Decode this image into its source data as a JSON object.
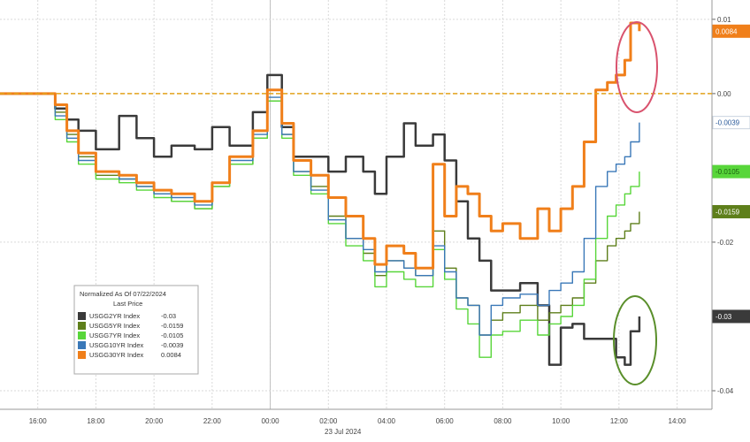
{
  "chart_data": {
    "type": "line",
    "title": "",
    "xlabel": "23 Jul 2024",
    "ylabel": "",
    "x_tick_labels": [
      "16:00",
      "18:00",
      "20:00",
      "22:00",
      "00:00",
      "02:00",
      "04:00",
      "06:00",
      "08:00",
      "10:00",
      "12:00",
      "14:00"
    ],
    "x_tick_hours": [
      -8,
      -6,
      -4,
      -2,
      0,
      2,
      4,
      6,
      8,
      10,
      12,
      14
    ],
    "x_range_hours": [
      -9.3,
      15.2
    ],
    "y_ticks": [
      0.01,
      0.0,
      -0.02,
      -0.04
    ],
    "y_tick_labels": [
      "0.01",
      "0.00",
      "-0.02",
      "-0.04"
    ],
    "ylim": [
      -0.0425,
      0.0126
    ],
    "grid": true,
    "reference_line": {
      "value": 0.0,
      "color": "#E3A21A",
      "style": "dashed"
    },
    "legend": {
      "title": "Normalized As Of 07/22/2024",
      "subtitle": "Last Price",
      "placement": "bottom-left"
    },
    "series": [
      {
        "name": "USGG2YR Index",
        "last": "-0.03",
        "last_label": "-0.03",
        "color": "#3a3a3a",
        "x": [
          -9.3,
          -7.4,
          -7.0,
          -6.6,
          -6.0,
          -5.2,
          -4.6,
          -4.0,
          -3.4,
          -2.6,
          -2.0,
          -1.4,
          -0.6,
          -0.1,
          0.4,
          0.8,
          1.4,
          2.0,
          2.6,
          3.2,
          3.6,
          4.0,
          4.6,
          5.0,
          5.6,
          6.0,
          6.4,
          6.8,
          7.2,
          7.6,
          8.0,
          8.6,
          9.2,
          9.6,
          10.0,
          10.4,
          10.8,
          11.2,
          11.6,
          11.9,
          12.2,
          12.4,
          12.7
        ],
        "y": [
          0.0,
          -0.002,
          -0.0035,
          -0.005,
          -0.0075,
          -0.003,
          -0.006,
          -0.0085,
          -0.007,
          -0.0075,
          -0.0045,
          -0.007,
          -0.0025,
          0.0025,
          -0.0045,
          -0.0085,
          -0.0085,
          -0.0105,
          -0.0085,
          -0.0105,
          -0.0135,
          -0.0085,
          -0.004,
          -0.007,
          -0.0055,
          -0.009,
          -0.0145,
          -0.0195,
          -0.0225,
          -0.0265,
          -0.0265,
          -0.0255,
          -0.0285,
          -0.0365,
          -0.0315,
          -0.031,
          -0.033,
          -0.033,
          -0.033,
          -0.0355,
          -0.0365,
          -0.032,
          -0.03
        ]
      },
      {
        "name": "USGG5YR Index",
        "last": "-0.0159",
        "last_label": "-0.0159",
        "color": "#5E7F1B",
        "x": [
          -9.3,
          -7.4,
          -7.0,
          -6.6,
          -6.0,
          -5.2,
          -4.6,
          -4.0,
          -3.4,
          -2.6,
          -2.0,
          -1.4,
          -0.6,
          -0.1,
          0.4,
          0.8,
          1.4,
          2.0,
          2.6,
          3.2,
          3.6,
          4.0,
          4.6,
          5.0,
          5.6,
          6.0,
          6.4,
          6.8,
          7.2,
          7.6,
          8.0,
          8.6,
          9.2,
          9.6,
          10.0,
          10.4,
          10.8,
          11.2,
          11.6,
          11.9,
          12.2,
          12.4,
          12.7
        ],
        "y": [
          0.0,
          -0.0025,
          -0.0055,
          -0.0085,
          -0.011,
          -0.0115,
          -0.0125,
          -0.0135,
          -0.0145,
          -0.0155,
          -0.0125,
          -0.0095,
          -0.006,
          -0.001,
          -0.0055,
          -0.0105,
          -0.0125,
          -0.0165,
          -0.0195,
          -0.0215,
          -0.0245,
          -0.0225,
          -0.0235,
          -0.0245,
          -0.0185,
          -0.0235,
          -0.0275,
          -0.0285,
          -0.0325,
          -0.0305,
          -0.0295,
          -0.0285,
          -0.0305,
          -0.0295,
          -0.0285,
          -0.0275,
          -0.0255,
          -0.0225,
          -0.0205,
          -0.0195,
          -0.0185,
          -0.0175,
          -0.0159
        ]
      },
      {
        "name": "USGG7YR Index",
        "last": "-0.0105",
        "last_label": "-0.0105",
        "color": "#58D63A",
        "x": [
          -9.3,
          -7.4,
          -7.0,
          -6.6,
          -6.0,
          -5.2,
          -4.6,
          -4.0,
          -3.4,
          -2.6,
          -2.0,
          -1.4,
          -0.6,
          -0.1,
          0.4,
          0.8,
          1.4,
          2.0,
          2.6,
          3.2,
          3.6,
          4.0,
          4.6,
          5.0,
          5.6,
          6.0,
          6.4,
          6.8,
          7.2,
          7.6,
          8.0,
          8.6,
          9.2,
          9.6,
          10.0,
          10.4,
          10.8,
          11.2,
          11.6,
          11.9,
          12.2,
          12.4,
          12.7
        ],
        "y": [
          0.0,
          -0.0035,
          -0.0065,
          -0.0095,
          -0.0115,
          -0.012,
          -0.013,
          -0.014,
          -0.0145,
          -0.0155,
          -0.0125,
          -0.0095,
          -0.006,
          -0.001,
          -0.006,
          -0.011,
          -0.0135,
          -0.0175,
          -0.0205,
          -0.0225,
          -0.026,
          -0.024,
          -0.025,
          -0.026,
          -0.021,
          -0.025,
          -0.029,
          -0.031,
          -0.0355,
          -0.0325,
          -0.032,
          -0.0305,
          -0.0325,
          -0.031,
          -0.03,
          -0.0285,
          -0.025,
          -0.0195,
          -0.0165,
          -0.015,
          -0.0135,
          -0.0125,
          -0.0105
        ]
      },
      {
        "name": "USGG10YR Index",
        "last": "-0.0039",
        "last_label": "-0.0039",
        "color": "#3A78B8",
        "x": [
          -9.3,
          -7.4,
          -7.0,
          -6.6,
          -6.0,
          -5.2,
          -4.6,
          -4.0,
          -3.4,
          -2.6,
          -2.0,
          -1.4,
          -0.6,
          -0.1,
          0.4,
          0.8,
          1.4,
          2.0,
          2.6,
          3.2,
          3.6,
          4.0,
          4.6,
          5.0,
          5.6,
          6.0,
          6.4,
          6.8,
          7.2,
          7.6,
          8.0,
          8.6,
          9.2,
          9.6,
          10.0,
          10.4,
          10.8,
          11.2,
          11.6,
          11.9,
          12.2,
          12.4,
          12.7
        ],
        "y": [
          0.0,
          -0.003,
          -0.006,
          -0.009,
          -0.0105,
          -0.0115,
          -0.0125,
          -0.0135,
          -0.014,
          -0.015,
          -0.012,
          -0.009,
          -0.0055,
          -0.0005,
          -0.0055,
          -0.0105,
          -0.013,
          -0.017,
          -0.0195,
          -0.021,
          -0.024,
          -0.0225,
          -0.0235,
          -0.0245,
          -0.0205,
          -0.024,
          -0.0275,
          -0.0285,
          -0.0325,
          -0.0285,
          -0.0275,
          -0.027,
          -0.0285,
          -0.0265,
          -0.0255,
          -0.024,
          -0.0195,
          -0.0125,
          -0.0105,
          -0.0095,
          -0.0085,
          -0.0065,
          -0.0039
        ]
      },
      {
        "name": "USGG30YR Index",
        "last": "0.0084",
        "last_label": "0.0084",
        "color": "#F07F1A",
        "x": [
          -9.3,
          -7.4,
          -7.0,
          -6.6,
          -6.0,
          -5.2,
          -4.6,
          -4.0,
          -3.4,
          -2.6,
          -2.0,
          -1.4,
          -0.6,
          -0.1,
          0.4,
          0.8,
          1.4,
          2.0,
          2.6,
          3.2,
          3.6,
          4.0,
          4.6,
          5.0,
          5.6,
          6.0,
          6.4,
          6.8,
          7.2,
          7.6,
          8.0,
          8.6,
          9.2,
          9.6,
          10.0,
          10.4,
          10.8,
          11.2,
          11.6,
          11.9,
          12.2,
          12.4,
          12.7
        ],
        "y": [
          0.0,
          -0.0015,
          -0.005,
          -0.008,
          -0.0105,
          -0.011,
          -0.012,
          -0.013,
          -0.0135,
          -0.0145,
          -0.012,
          -0.0085,
          -0.005,
          0.0005,
          -0.004,
          -0.009,
          -0.011,
          -0.014,
          -0.0165,
          -0.0195,
          -0.023,
          -0.0205,
          -0.0215,
          -0.0235,
          -0.0095,
          -0.0165,
          -0.0125,
          -0.0135,
          -0.0165,
          -0.0185,
          -0.0175,
          -0.0195,
          -0.0155,
          -0.0185,
          -0.0155,
          -0.0125,
          -0.0065,
          0.0005,
          0.0015,
          0.0025,
          0.0045,
          0.0095,
          0.0084
        ]
      }
    ],
    "annotations": [
      {
        "type": "circle",
        "color": "#D9536E",
        "around": "USGG30YR Index recent high"
      },
      {
        "type": "circle",
        "color": "#5A8F2B",
        "around": "USGG2YR Index recent low"
      }
    ]
  }
}
